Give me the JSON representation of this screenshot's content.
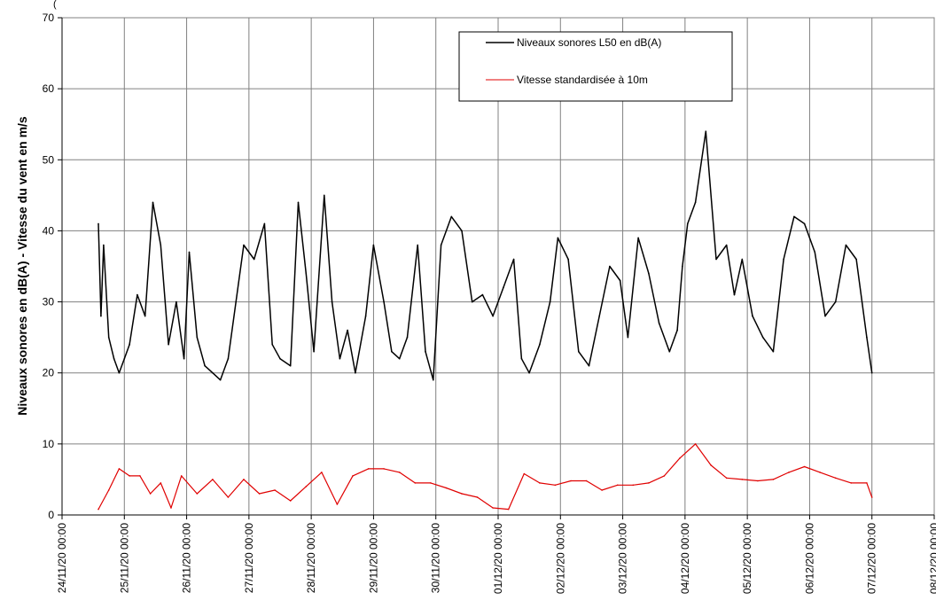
{
  "chart_data": {
    "type": "line",
    "caption": "(",
    "ylabel": "Niveaux sonores en dB(A) - Vitesse du vent en m/s",
    "ylim": [
      0,
      70
    ],
    "yticks": [
      "0",
      "10",
      "20",
      "30",
      "40",
      "50",
      "60",
      "70"
    ],
    "x_start": "24/11/20 00:00",
    "x_end": "08/12/20 00:00",
    "xticks": [
      "24/11/20 00:00",
      "25/11/20 00:00",
      "26/11/20 00:00",
      "27/11/20 00:00",
      "28/11/20 00:00",
      "29/11/20 00:00",
      "30/11/20 00:00",
      "01/12/20 00:00",
      "02/12/20 00:00",
      "03/12/20 00:00",
      "04/12/20 00:00",
      "05/12/20 00:00",
      "06/12/20 00:00",
      "07/12/20 00:00",
      "08/12/20 00:00"
    ],
    "grid": true,
    "legend": "top-center",
    "series": [
      {
        "name": "Niveaux sonores L50 en dB(A)",
        "color": "#000000",
        "x": [
          "24/11/20 14:00",
          "24/11/20 15:00",
          "24/11/20 16:00",
          "24/11/20 18:00",
          "24/11/20 20:00",
          "24/11/20 22:00",
          "25/11/20 00:00",
          "25/11/20 02:00",
          "25/11/20 05:00",
          "25/11/20 08:00",
          "25/11/20 11:00",
          "25/11/20 14:00",
          "25/11/20 17:00",
          "25/11/20 20:00",
          "25/11/20 23:00",
          "26/11/20 01:00",
          "26/11/20 04:00",
          "26/11/20 07:00",
          "26/11/20 10:00",
          "26/11/20 13:00",
          "26/11/20 16:00",
          "26/11/20 19:00",
          "26/11/20 22:00",
          "27/11/20 02:00",
          "27/11/20 06:00",
          "27/11/20 09:00",
          "27/11/20 12:00",
          "27/11/20 16:00",
          "27/11/20 19:00",
          "27/11/20 22:00",
          "28/11/20 01:00",
          "28/11/20 05:00",
          "28/11/20 08:00",
          "28/11/20 11:00",
          "28/11/20 14:00",
          "28/11/20 17:00",
          "28/11/20 21:00",
          "29/11/20 00:00",
          "29/11/20 04:00",
          "29/11/20 07:00",
          "29/11/20 10:00",
          "29/11/20 13:00",
          "29/11/20 17:00",
          "29/11/20 20:00",
          "29/11/20 23:00",
          "30/11/20 02:00",
          "30/11/20 06:00",
          "30/11/20 10:00",
          "30/11/20 14:00",
          "30/11/20 18:00",
          "30/11/20 22:00",
          "01/12/20 02:00",
          "01/12/20 06:00",
          "01/12/20 09:00",
          "01/12/20 12:00",
          "01/12/20 16:00",
          "01/12/20 20:00",
          "01/12/20 23:00",
          "02/12/20 03:00",
          "02/12/20 07:00",
          "02/12/20 11:00",
          "02/12/20 15:00",
          "02/12/20 19:00",
          "02/12/20 23:00",
          "03/12/20 02:00",
          "03/12/20 06:00",
          "03/12/20 10:00",
          "03/12/20 14:00",
          "03/12/20 18:00",
          "03/12/20 21:00",
          "03/12/20 23:00",
          "04/12/20 01:00",
          "04/12/20 04:00",
          "04/12/20 08:00",
          "04/12/20 12:00",
          "04/12/20 16:00",
          "04/12/20 19:00",
          "04/12/20 22:00",
          "05/12/20 02:00",
          "05/12/20 06:00",
          "05/12/20 10:00",
          "05/12/20 14:00",
          "05/12/20 18:00",
          "05/12/20 22:00",
          "06/12/20 02:00",
          "06/12/20 06:00",
          "06/12/20 10:00",
          "06/12/20 14:00",
          "06/12/20 18:00",
          "06/12/20 22:00",
          "07/12/20 00:00"
        ],
        "y": [
          41,
          28,
          38,
          25,
          22,
          20,
          22,
          24,
          31,
          28,
          44,
          38,
          24,
          30,
          22,
          37,
          25,
          21,
          20,
          19,
          22,
          30,
          38,
          36,
          41,
          24,
          22,
          21,
          44,
          34,
          23,
          45,
          30,
          22,
          26,
          20,
          28,
          38,
          30,
          23,
          22,
          25,
          38,
          23,
          19,
          38,
          42,
          40,
          30,
          31,
          28,
          32,
          36,
          22,
          20,
          24,
          30,
          39,
          36,
          23,
          21,
          28,
          35,
          33,
          25,
          39,
          34,
          27,
          23,
          26,
          35,
          41,
          44,
          54,
          36,
          38,
          31,
          36,
          28,
          25,
          23,
          36,
          42,
          41,
          37,
          28,
          30,
          38,
          36,
          25,
          20
        ]
      },
      {
        "name": "Vitesse standardisée à 10m",
        "color": "#e00000",
        "x": [
          "24/11/20 14:00",
          "24/11/20 18:00",
          "24/11/20 22:00",
          "25/11/20 02:00",
          "25/11/20 06:00",
          "25/11/20 10:00",
          "25/11/20 14:00",
          "25/11/20 18:00",
          "25/11/20 22:00",
          "26/11/20 04:00",
          "26/11/20 10:00",
          "26/11/20 16:00",
          "26/11/20 22:00",
          "27/11/20 04:00",
          "27/11/20 10:00",
          "27/11/20 16:00",
          "27/11/20 22:00",
          "28/11/20 04:00",
          "28/11/20 10:00",
          "28/11/20 16:00",
          "28/11/20 22:00",
          "29/11/20 04:00",
          "29/11/20 10:00",
          "29/11/20 16:00",
          "29/11/20 22:00",
          "30/11/20 04:00",
          "30/11/20 10:00",
          "30/11/20 16:00",
          "30/11/20 22:00",
          "01/12/20 04:00",
          "01/12/20 10:00",
          "01/12/20 16:00",
          "01/12/20 22:00",
          "02/12/20 04:00",
          "02/12/20 10:00",
          "02/12/20 16:00",
          "02/12/20 22:00",
          "03/12/20 04:00",
          "03/12/20 10:00",
          "03/12/20 16:00",
          "03/12/20 22:00",
          "04/12/20 04:00",
          "04/12/20 10:00",
          "04/12/20 16:00",
          "04/12/20 22:00",
          "05/12/20 04:00",
          "05/12/20 10:00",
          "05/12/20 16:00",
          "05/12/20 22:00",
          "06/12/20 04:00",
          "06/12/20 10:00",
          "06/12/20 16:00",
          "06/12/20 22:00",
          "07/12/20 00:00"
        ],
        "y": [
          0.8,
          3.5,
          6.5,
          5.5,
          5.5,
          3.0,
          4.5,
          1.0,
          5.5,
          3.0,
          5.0,
          2.5,
          5.0,
          3.0,
          3.5,
          2.0,
          4.0,
          6.0,
          1.5,
          5.5,
          6.5,
          6.5,
          6.0,
          4.5,
          4.5,
          3.8,
          3.0,
          2.5,
          1.0,
          0.8,
          5.8,
          4.5,
          4.2,
          4.8,
          4.8,
          3.5,
          4.2,
          4.2,
          4.5,
          5.5,
          8.0,
          10.0,
          7.0,
          5.2,
          5.0,
          4.8,
          5.0,
          6.0,
          6.8,
          6.0,
          5.2,
          4.5,
          4.5,
          2.5
        ]
      }
    ]
  }
}
